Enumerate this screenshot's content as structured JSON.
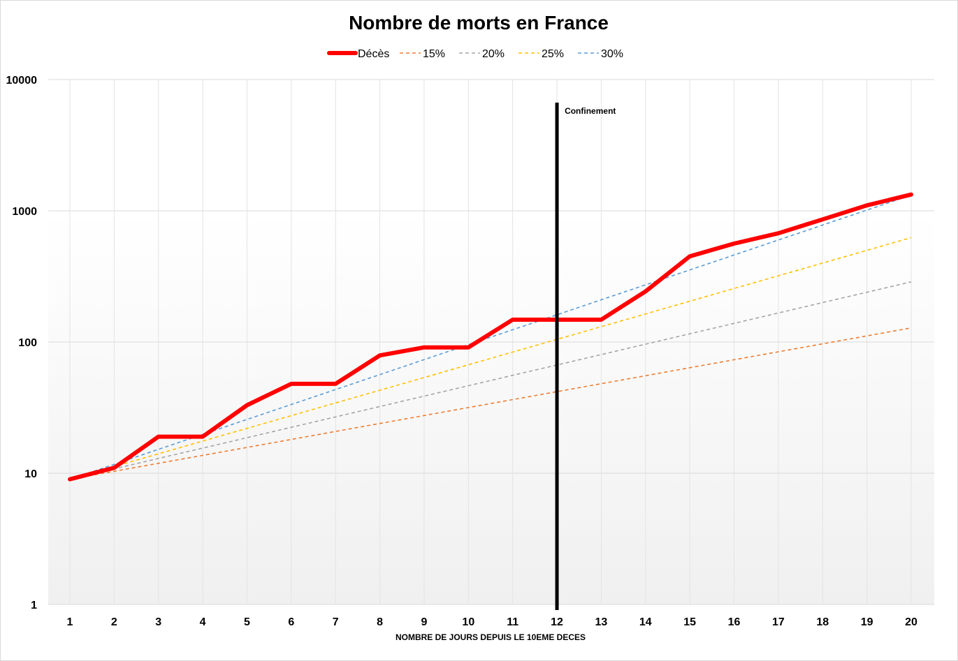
{
  "chart_data": {
    "type": "line",
    "title": "Nombre de morts en France",
    "xlabel": "NOMBRE DE JOURS DEPUIS LE 10EME DECES",
    "ylabel": "",
    "yscale": "log",
    "ylim": [
      1,
      10000
    ],
    "yticks": [
      "1",
      "10",
      "100",
      "1000",
      "10000"
    ],
    "x": [
      1,
      2,
      3,
      4,
      5,
      6,
      7,
      8,
      9,
      10,
      11,
      12,
      13,
      14,
      15,
      16,
      17,
      18,
      19,
      20
    ],
    "xticks": [
      "1",
      "2",
      "3",
      "4",
      "5",
      "6",
      "7",
      "8",
      "9",
      "10",
      "11",
      "12",
      "13",
      "14",
      "15",
      "16",
      "17",
      "18",
      "19",
      "20"
    ],
    "grid": true,
    "legend_position": "top",
    "series": [
      {
        "name": "Décès",
        "style": "solid",
        "color": "#ff0000",
        "values": [
          9,
          11,
          19,
          19,
          33,
          48,
          48,
          79,
          91,
          91,
          148,
          148,
          148,
          243,
          450,
          562,
          674,
          860,
          1100,
          1331
        ]
      },
      {
        "name": "15%",
        "style": "dashed",
        "color": "#ed7d31",
        "values": [
          9,
          10.35,
          11.9,
          13.69,
          15.74,
          18.1,
          20.82,
          23.94,
          27.53,
          31.66,
          36.41,
          41.87,
          48.15,
          55.37,
          63.68,
          73.23,
          84.21,
          96.84,
          111.37,
          128.07
        ]
      },
      {
        "name": "20%",
        "style": "dashed",
        "color": "#a5a5a5",
        "values": [
          9,
          10.8,
          12.96,
          15.55,
          18.66,
          22.39,
          26.87,
          32.25,
          38.7,
          46.44,
          55.72,
          66.87,
          80.24,
          96.29,
          115.55,
          138.66,
          166.39,
          199.67,
          239.6,
          287.52
        ]
      },
      {
        "name": "25%",
        "style": "dashed",
        "color": "#ffc000",
        "values": [
          9,
          11.25,
          14.06,
          17.58,
          21.97,
          27.47,
          34.33,
          42.92,
          53.64,
          67.06,
          83.82,
          104.77,
          130.97,
          163.71,
          204.64,
          255.8,
          319.75,
          399.69,
          499.61,
          624.51
        ]
      },
      {
        "name": "30%",
        "style": "dashed",
        "color": "#5b9bd5",
        "values": [
          9,
          11.7,
          15.21,
          19.77,
          25.7,
          33.42,
          43.44,
          56.47,
          73.41,
          95.44,
          124.07,
          161.29,
          209.68,
          272.58,
          354.36,
          460.66,
          598.86,
          778.52,
          1012.08,
          1315.7
        ]
      }
    ],
    "annotations": [
      {
        "label": "Confinement",
        "x": 12
      }
    ]
  }
}
